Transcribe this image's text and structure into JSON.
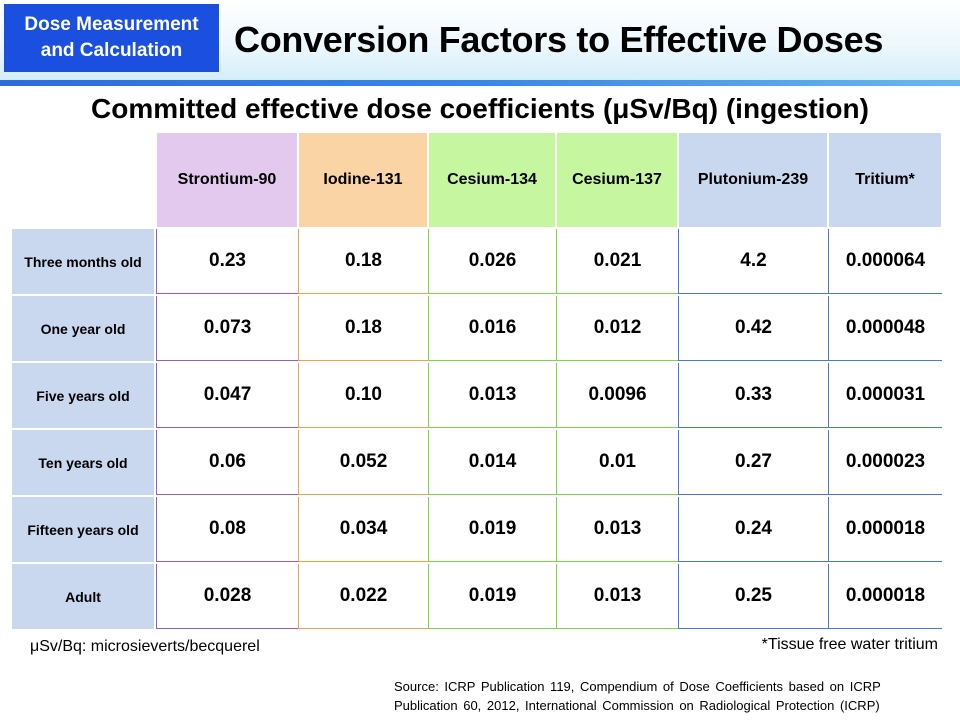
{
  "header": {
    "badge": "Dose Measurement\nand Calculation",
    "title": "Conversion Factors to Effective Doses"
  },
  "subtitle": "Committed effective dose coefficients (μSv/Bq) (ingestion)",
  "table": {
    "columns": [
      {
        "label": "Strontium-90",
        "color": "#e3c9ee",
        "line": "#9b59c9"
      },
      {
        "label": "Iodine-131",
        "color": "#fbd4a6",
        "line": "#f0a24a"
      },
      {
        "label": "Cesium-134",
        "color": "#c6f6a0",
        "line": "#7dd64a"
      },
      {
        "label": "Cesium-137",
        "color": "#c6f6a0",
        "line": "#7dd64a"
      },
      {
        "label": "Plutonium-239",
        "color": "#c9d8ef",
        "line": "#4a78d8"
      },
      {
        "label": "Tritium*",
        "color": "#c9d8ef",
        "line": "#4a78d8"
      }
    ],
    "rows": [
      {
        "label": "Three months old",
        "values": [
          "0.23",
          "0.18",
          "0.026",
          "0.021",
          "4.2",
          "0.000064"
        ]
      },
      {
        "label": "One year old",
        "values": [
          "0.073",
          "0.18",
          "0.016",
          "0.012",
          "0.42",
          "0.000048"
        ]
      },
      {
        "label": "Five years old",
        "values": [
          "0.047",
          "0.10",
          "0.013",
          "0.0096",
          "0.33",
          "0.000031"
        ]
      },
      {
        "label": "Ten years old",
        "values": [
          "0.06",
          "0.052",
          "0.014",
          "0.01",
          "0.27",
          "0.000023"
        ]
      },
      {
        "label": "Fifteen years old",
        "values": [
          "0.08",
          "0.034",
          "0.019",
          "0.013",
          "0.24",
          "0.000018"
        ]
      },
      {
        "label": "Adult",
        "values": [
          "0.028",
          "0.022",
          "0.019",
          "0.013",
          "0.25",
          "0.000018"
        ]
      }
    ]
  },
  "notes": {
    "unit": "μSv/Bq: microsieverts/becquerel",
    "tritium": "*Tissue free water tritium"
  },
  "source": "Source: ICRP Publication 119, Compendium of Dose Coefficients based on ICRP Publication 60, 2012, International Commission on Radiological Protection (ICRP)",
  "colors": {
    "badge": "#1a4fe0",
    "header_rule": "#2f6bd8",
    "row_label_bg": "#c9d8ef"
  }
}
